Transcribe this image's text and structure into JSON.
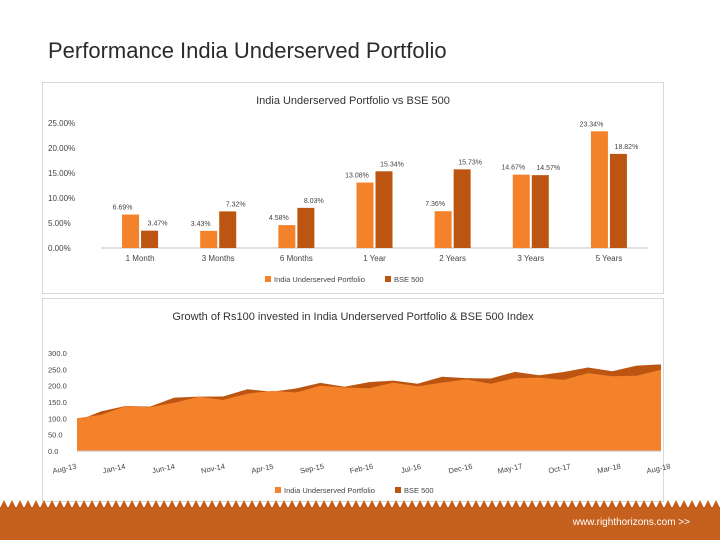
{
  "slide": {
    "title": "Performance India Underserved Portfolio",
    "footer_url": "www.righthorizons.com  >>"
  },
  "colors": {
    "series1": "#f4822a",
    "series2": "#bd5512",
    "footer": "#c6601f"
  },
  "chart_data": [
    {
      "type": "bar",
      "title": "India Underserved Portfolio vs BSE 500",
      "categories": [
        "1 Month",
        "3 Months",
        "6 Months",
        "1 Year",
        "2 Years",
        "3 Years",
        "5 Years"
      ],
      "series": [
        {
          "name": "India Underserved Portfolio",
          "values": [
            6.69,
            3.43,
            4.58,
            13.08,
            7.36,
            14.67,
            23.34
          ]
        },
        {
          "name": "BSE 500",
          "values": [
            3.47,
            7.32,
            8.03,
            15.34,
            15.73,
            14.57,
            18.82
          ]
        }
      ],
      "data_labels": [
        [
          "6.69%",
          "3.43%",
          "4.58%",
          "13.08%",
          "7.36%",
          "14.67%",
          "23.34%"
        ],
        [
          "3.47%",
          "7.32%",
          "8.03%",
          "15.34%",
          "15.73%",
          "14.57%",
          "18.82%"
        ]
      ],
      "y_ticks": [
        "0.00%",
        "5.00%",
        "10.00%",
        "15.00%",
        "20.00%",
        "25.00%"
      ],
      "ylim": [
        0,
        25
      ],
      "legend": "bottom"
    },
    {
      "type": "area",
      "title": "Growth of Rs100 invested in India Underserved Portfolio & BSE 500 Index",
      "x_ticks": [
        "Aug-13",
        "Jan-14",
        "Jun-14",
        "Nov-14",
        "Apr-15",
        "Sep-15",
        "Feb-16",
        "Jul-16",
        "Dec-16",
        "May-17",
        "Oct-17",
        "Mar-18",
        "Aug-18"
      ],
      "y_ticks": [
        "0.0",
        "50.0",
        "100.0",
        "150.0",
        "200.0",
        "250.0",
        "300.0"
      ],
      "ylim": [
        0,
        300
      ],
      "series": [
        {
          "name": "India Underserved Portfolio",
          "values": [
            100,
            118,
            128,
            139,
            150,
            158,
            165,
            172,
            180,
            188,
            192,
            196,
            198,
            200,
            205,
            210,
            212,
            215,
            218,
            222,
            226,
            230,
            232,
            235,
            240
          ]
        },
        {
          "name": "BSE 500",
          "values": [
            100,
            120,
            132,
            145,
            157,
            166,
            174,
            180,
            186,
            194,
            200,
            205,
            208,
            211,
            215,
            220,
            224,
            228,
            233,
            238,
            243,
            248,
            253,
            257,
            262
          ]
        }
      ],
      "legend": "bottom"
    }
  ]
}
